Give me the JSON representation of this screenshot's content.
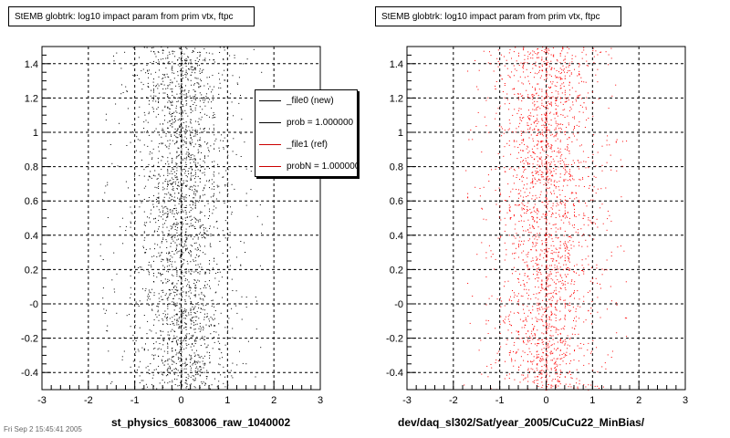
{
  "panels": [
    {
      "title": "StEMB globtrk: log10 impact param from prim vtx, ftpc",
      "xlabel": "st_physics_6083006_raw_1040002",
      "color": "#000000",
      "has_legend": true
    },
    {
      "title": "StEMB globtrk: log10 impact param from prim vtx, ftpc",
      "xlabel": "dev/daq_sl302/Sat/year_2005/CuCu22_MinBias/",
      "color": "#ff0000",
      "has_legend": false
    }
  ],
  "legend": {
    "entries": [
      {
        "label": "_file0 (new)",
        "color": "#000000"
      },
      {
        "label": "prob = 1.000000",
        "color": "#000000"
      },
      {
        "label": "_file1 (ref)",
        "color": "#cc0000"
      },
      {
        "label": "probN = 1.000000",
        "color": "#cc0000"
      }
    ]
  },
  "footer": "Fri Sep  2 15:45:41 2005",
  "chart_data": [
    {
      "type": "scatter",
      "title": "StEMB globtrk: log10 impact param from prim vtx, ftpc",
      "xlabel": "st_physics_6083006_raw_1040002",
      "ylabel": "",
      "xlim": [
        -3,
        3
      ],
      "ylim": [
        -0.5,
        1.5
      ],
      "xticks": [
        -3,
        -2,
        -1,
        0,
        1,
        2,
        3
      ],
      "yticks": [
        -0.4,
        -0.2,
        0,
        0.2,
        0.4,
        0.6,
        0.8,
        1,
        1.2,
        1.4
      ],
      "ytick_labels": [
        "-0.4",
        "-0.2",
        "-0",
        "0.2",
        "0.4",
        "0.6",
        "0.8",
        "1",
        "1.2",
        "1.4"
      ],
      "grid": true,
      "series": [
        {
          "name": "_file0 (new)",
          "color": "#000000",
          "distribution": {
            "x_center": 0,
            "x_spread": 0.45,
            "y_min": -0.5,
            "y_max": 1.5,
            "points": 2600
          }
        }
      ]
    },
    {
      "type": "scatter",
      "title": "StEMB globtrk: log10 impact param from prim vtx, ftpc",
      "xlabel": "dev/daq_sl302/Sat/year_2005/CuCu22_MinBias/",
      "ylabel": "",
      "xlim": [
        -3,
        3
      ],
      "ylim": [
        -0.5,
        1.5
      ],
      "xticks": [
        -3,
        -2,
        -1,
        0,
        1,
        2,
        3
      ],
      "yticks": [
        -0.4,
        -0.2,
        0,
        0.2,
        0.4,
        0.6,
        0.8,
        1,
        1.2,
        1.4
      ],
      "ytick_labels": [
        "-0.4",
        "-0.2",
        "-0",
        "0.2",
        "0.4",
        "0.6",
        "0.8",
        "1",
        "1.2",
        "1.4"
      ],
      "grid": true,
      "series": [
        {
          "name": "_file1 (ref)",
          "color": "#ff0000",
          "distribution": {
            "x_center": 0,
            "x_spread": 0.5,
            "y_min": -0.5,
            "y_max": 1.5,
            "points": 2400
          }
        }
      ]
    }
  ]
}
